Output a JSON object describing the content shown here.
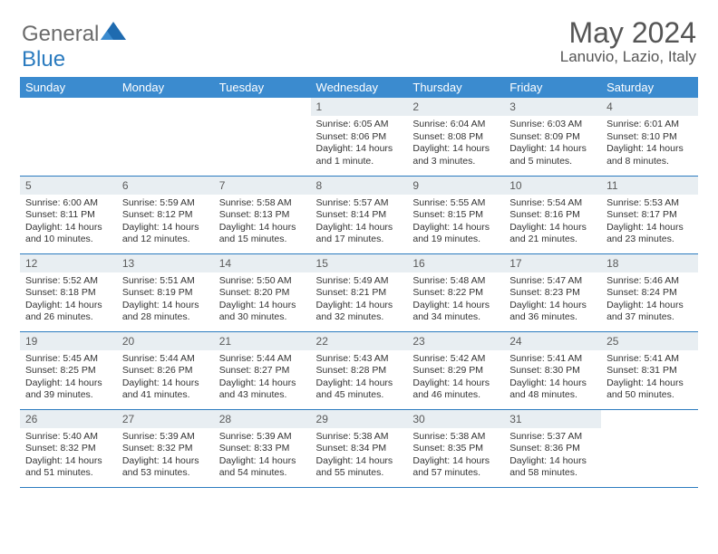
{
  "brand": {
    "part1": "General",
    "part2": "Blue"
  },
  "title": "May 2024",
  "location": "Lanuvio, Lazio, Italy",
  "colors": {
    "header_bg": "#3b8bcf",
    "daynum_bg": "#e8eef2",
    "rule": "#2b7bbf",
    "text": "#333333",
    "title_text": "#555555"
  },
  "weekdays": [
    "Sunday",
    "Monday",
    "Tuesday",
    "Wednesday",
    "Thursday",
    "Friday",
    "Saturday"
  ],
  "weeks": [
    [
      {
        "n": "",
        "lines": []
      },
      {
        "n": "",
        "lines": []
      },
      {
        "n": "",
        "lines": []
      },
      {
        "n": "1",
        "lines": [
          "Sunrise: 6:05 AM",
          "Sunset: 8:06 PM",
          "Daylight: 14 hours",
          "and 1 minute."
        ]
      },
      {
        "n": "2",
        "lines": [
          "Sunrise: 6:04 AM",
          "Sunset: 8:08 PM",
          "Daylight: 14 hours",
          "and 3 minutes."
        ]
      },
      {
        "n": "3",
        "lines": [
          "Sunrise: 6:03 AM",
          "Sunset: 8:09 PM",
          "Daylight: 14 hours",
          "and 5 minutes."
        ]
      },
      {
        "n": "4",
        "lines": [
          "Sunrise: 6:01 AM",
          "Sunset: 8:10 PM",
          "Daylight: 14 hours",
          "and 8 minutes."
        ]
      }
    ],
    [
      {
        "n": "5",
        "lines": [
          "Sunrise: 6:00 AM",
          "Sunset: 8:11 PM",
          "Daylight: 14 hours",
          "and 10 minutes."
        ]
      },
      {
        "n": "6",
        "lines": [
          "Sunrise: 5:59 AM",
          "Sunset: 8:12 PM",
          "Daylight: 14 hours",
          "and 12 minutes."
        ]
      },
      {
        "n": "7",
        "lines": [
          "Sunrise: 5:58 AM",
          "Sunset: 8:13 PM",
          "Daylight: 14 hours",
          "and 15 minutes."
        ]
      },
      {
        "n": "8",
        "lines": [
          "Sunrise: 5:57 AM",
          "Sunset: 8:14 PM",
          "Daylight: 14 hours",
          "and 17 minutes."
        ]
      },
      {
        "n": "9",
        "lines": [
          "Sunrise: 5:55 AM",
          "Sunset: 8:15 PM",
          "Daylight: 14 hours",
          "and 19 minutes."
        ]
      },
      {
        "n": "10",
        "lines": [
          "Sunrise: 5:54 AM",
          "Sunset: 8:16 PM",
          "Daylight: 14 hours",
          "and 21 minutes."
        ]
      },
      {
        "n": "11",
        "lines": [
          "Sunrise: 5:53 AM",
          "Sunset: 8:17 PM",
          "Daylight: 14 hours",
          "and 23 minutes."
        ]
      }
    ],
    [
      {
        "n": "12",
        "lines": [
          "Sunrise: 5:52 AM",
          "Sunset: 8:18 PM",
          "Daylight: 14 hours",
          "and 26 minutes."
        ]
      },
      {
        "n": "13",
        "lines": [
          "Sunrise: 5:51 AM",
          "Sunset: 8:19 PM",
          "Daylight: 14 hours",
          "and 28 minutes."
        ]
      },
      {
        "n": "14",
        "lines": [
          "Sunrise: 5:50 AM",
          "Sunset: 8:20 PM",
          "Daylight: 14 hours",
          "and 30 minutes."
        ]
      },
      {
        "n": "15",
        "lines": [
          "Sunrise: 5:49 AM",
          "Sunset: 8:21 PM",
          "Daylight: 14 hours",
          "and 32 minutes."
        ]
      },
      {
        "n": "16",
        "lines": [
          "Sunrise: 5:48 AM",
          "Sunset: 8:22 PM",
          "Daylight: 14 hours",
          "and 34 minutes."
        ]
      },
      {
        "n": "17",
        "lines": [
          "Sunrise: 5:47 AM",
          "Sunset: 8:23 PM",
          "Daylight: 14 hours",
          "and 36 minutes."
        ]
      },
      {
        "n": "18",
        "lines": [
          "Sunrise: 5:46 AM",
          "Sunset: 8:24 PM",
          "Daylight: 14 hours",
          "and 37 minutes."
        ]
      }
    ],
    [
      {
        "n": "19",
        "lines": [
          "Sunrise: 5:45 AM",
          "Sunset: 8:25 PM",
          "Daylight: 14 hours",
          "and 39 minutes."
        ]
      },
      {
        "n": "20",
        "lines": [
          "Sunrise: 5:44 AM",
          "Sunset: 8:26 PM",
          "Daylight: 14 hours",
          "and 41 minutes."
        ]
      },
      {
        "n": "21",
        "lines": [
          "Sunrise: 5:44 AM",
          "Sunset: 8:27 PM",
          "Daylight: 14 hours",
          "and 43 minutes."
        ]
      },
      {
        "n": "22",
        "lines": [
          "Sunrise: 5:43 AM",
          "Sunset: 8:28 PM",
          "Daylight: 14 hours",
          "and 45 minutes."
        ]
      },
      {
        "n": "23",
        "lines": [
          "Sunrise: 5:42 AM",
          "Sunset: 8:29 PM",
          "Daylight: 14 hours",
          "and 46 minutes."
        ]
      },
      {
        "n": "24",
        "lines": [
          "Sunrise: 5:41 AM",
          "Sunset: 8:30 PM",
          "Daylight: 14 hours",
          "and 48 minutes."
        ]
      },
      {
        "n": "25",
        "lines": [
          "Sunrise: 5:41 AM",
          "Sunset: 8:31 PM",
          "Daylight: 14 hours",
          "and 50 minutes."
        ]
      }
    ],
    [
      {
        "n": "26",
        "lines": [
          "Sunrise: 5:40 AM",
          "Sunset: 8:32 PM",
          "Daylight: 14 hours",
          "and 51 minutes."
        ]
      },
      {
        "n": "27",
        "lines": [
          "Sunrise: 5:39 AM",
          "Sunset: 8:32 PM",
          "Daylight: 14 hours",
          "and 53 minutes."
        ]
      },
      {
        "n": "28",
        "lines": [
          "Sunrise: 5:39 AM",
          "Sunset: 8:33 PM",
          "Daylight: 14 hours",
          "and 54 minutes."
        ]
      },
      {
        "n": "29",
        "lines": [
          "Sunrise: 5:38 AM",
          "Sunset: 8:34 PM",
          "Daylight: 14 hours",
          "and 55 minutes."
        ]
      },
      {
        "n": "30",
        "lines": [
          "Sunrise: 5:38 AM",
          "Sunset: 8:35 PM",
          "Daylight: 14 hours",
          "and 57 minutes."
        ]
      },
      {
        "n": "31",
        "lines": [
          "Sunrise: 5:37 AM",
          "Sunset: 8:36 PM",
          "Daylight: 14 hours",
          "and 58 minutes."
        ]
      },
      {
        "n": "",
        "lines": []
      }
    ]
  ]
}
